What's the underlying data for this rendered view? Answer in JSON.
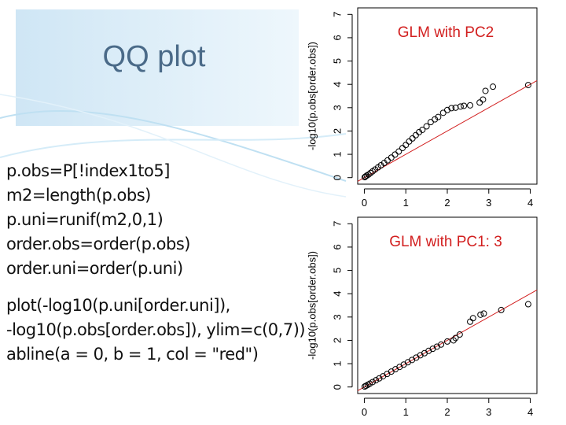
{
  "title": "QQ plot",
  "code": [
    "p.obs=P[!index1to5]",
    "m2=length(p.obs)",
    "p.uni=runif(m2,0,1)",
    "order.obs=order(p.obs)",
    "order.uni=order(p.uni)",
    "plot(-log10(p.uni[order.uni]),",
    "-log10(p.obs[order.obs]), ylim=c(0,7))",
    "abline(a = 0, b = 1, col = \"red\")"
  ],
  "chart_data": [
    {
      "type": "scatter",
      "title": "GLM with PC2",
      "y_label": "-log10(p.obs[order.obs])",
      "x": [
        0.01,
        0.03,
        0.06,
        0.1,
        0.15,
        0.2,
        0.26,
        0.33,
        0.4,
        0.48,
        0.56,
        0.65,
        0.74,
        0.83,
        0.92,
        1.0,
        1.08,
        1.16,
        1.24,
        1.32,
        1.4,
        1.5,
        1.6,
        1.7,
        1.78,
        1.9,
        2.0,
        2.1,
        2.2,
        2.32,
        2.4,
        2.55,
        2.78,
        2.86,
        2.92,
        3.1,
        3.95
      ],
      "values": [
        0.02,
        0.05,
        0.09,
        0.13,
        0.2,
        0.27,
        0.35,
        0.44,
        0.53,
        0.63,
        0.74,
        0.86,
        0.99,
        1.12,
        1.27,
        1.4,
        1.55,
        1.68,
        1.82,
        1.95,
        2.05,
        2.2,
        2.38,
        2.5,
        2.6,
        2.78,
        2.9,
        2.98,
        3.0,
        3.05,
        3.08,
        3.1,
        3.22,
        3.35,
        3.72,
        3.9,
        3.97
      ],
      "xlim": [
        -0.16,
        4.16
      ],
      "ylim": [
        -0.28,
        7.28
      ],
      "xticks": [
        0,
        1,
        2,
        3,
        4
      ],
      "yticks": [
        0,
        1,
        2,
        3,
        4,
        5,
        6,
        7
      ]
    },
    {
      "type": "scatter",
      "title": "GLM with PC1: 3",
      "y_label": "-log10(p.obs[order.obs])",
      "x": [
        0.01,
        0.04,
        0.08,
        0.13,
        0.2,
        0.28,
        0.36,
        0.45,
        0.55,
        0.65,
        0.75,
        0.85,
        0.95,
        1.05,
        1.15,
        1.25,
        1.35,
        1.45,
        1.55,
        1.65,
        1.75,
        1.85,
        2.0,
        2.15,
        2.2,
        2.3,
        2.55,
        2.62,
        2.8,
        2.88,
        3.3,
        3.95
      ],
      "values": [
        0.02,
        0.05,
        0.09,
        0.14,
        0.21,
        0.29,
        0.37,
        0.46,
        0.56,
        0.66,
        0.76,
        0.86,
        0.96,
        1.06,
        1.16,
        1.26,
        1.36,
        1.45,
        1.55,
        1.64,
        1.73,
        1.82,
        1.95,
        2.0,
        2.1,
        2.25,
        2.8,
        2.95,
        3.1,
        3.15,
        3.3,
        3.55
      ],
      "xlim": [
        -0.16,
        4.16
      ],
      "ylim": [
        -0.28,
        7.28
      ],
      "xticks": [
        0,
        1,
        2,
        3,
        4
      ],
      "yticks": [
        0,
        1,
        2,
        3,
        4,
        5,
        6,
        7
      ]
    }
  ]
}
